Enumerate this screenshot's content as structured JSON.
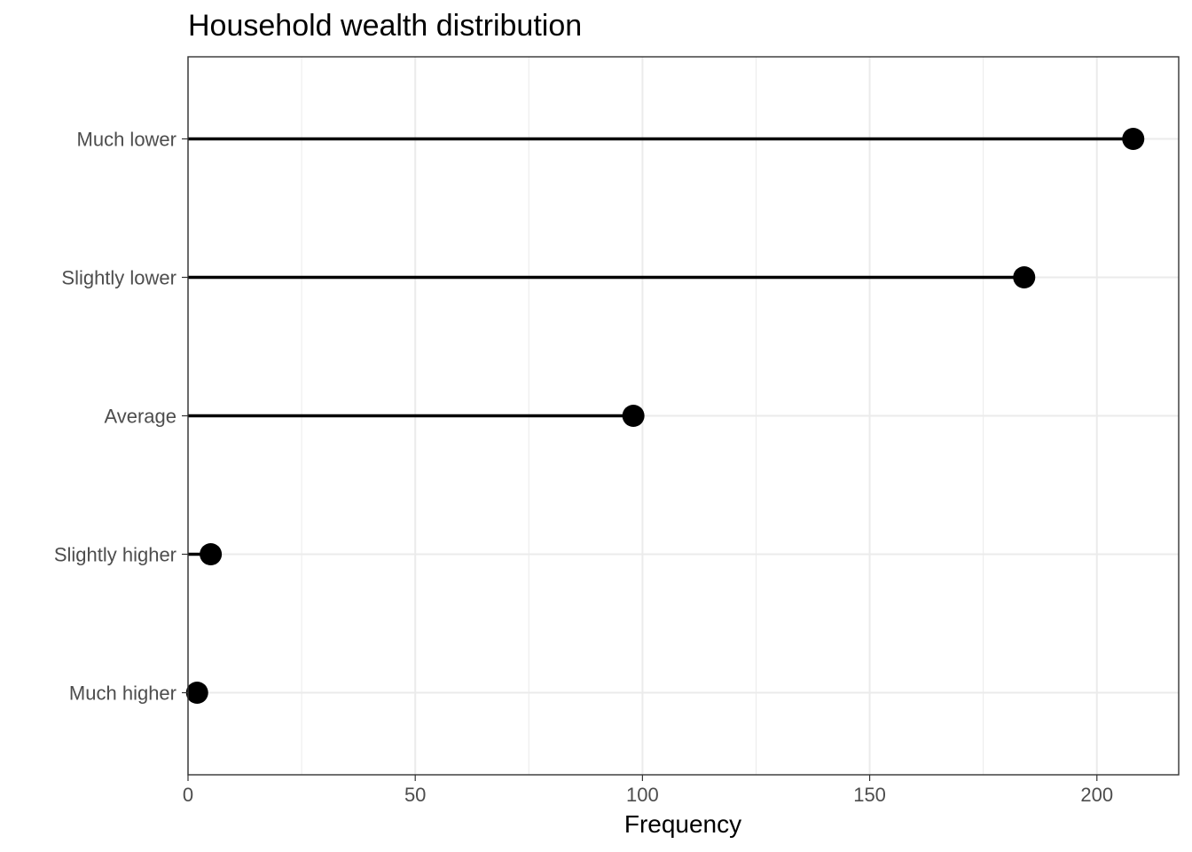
{
  "chart_data": {
    "type": "lollipop",
    "title": "Household wealth distribution",
    "xlabel": "Frequency",
    "ylabel": "",
    "categories": [
      "Much lower",
      "Slightly lower",
      "Average",
      "Slightly higher",
      "Much higher"
    ],
    "values": [
      208,
      184,
      98,
      5,
      2
    ],
    "xlim": [
      0,
      218
    ],
    "x_ticks": [
      0,
      50,
      100,
      150,
      200
    ],
    "x_tick_labels": [
      "0",
      "50",
      "100",
      "150",
      "200"
    ],
    "grid": true,
    "theme": "black-and-white",
    "colors": {
      "marks": "#000000",
      "grid": "#ebebeb",
      "border": "#333333",
      "tick_text": "#4d4d4d"
    }
  }
}
